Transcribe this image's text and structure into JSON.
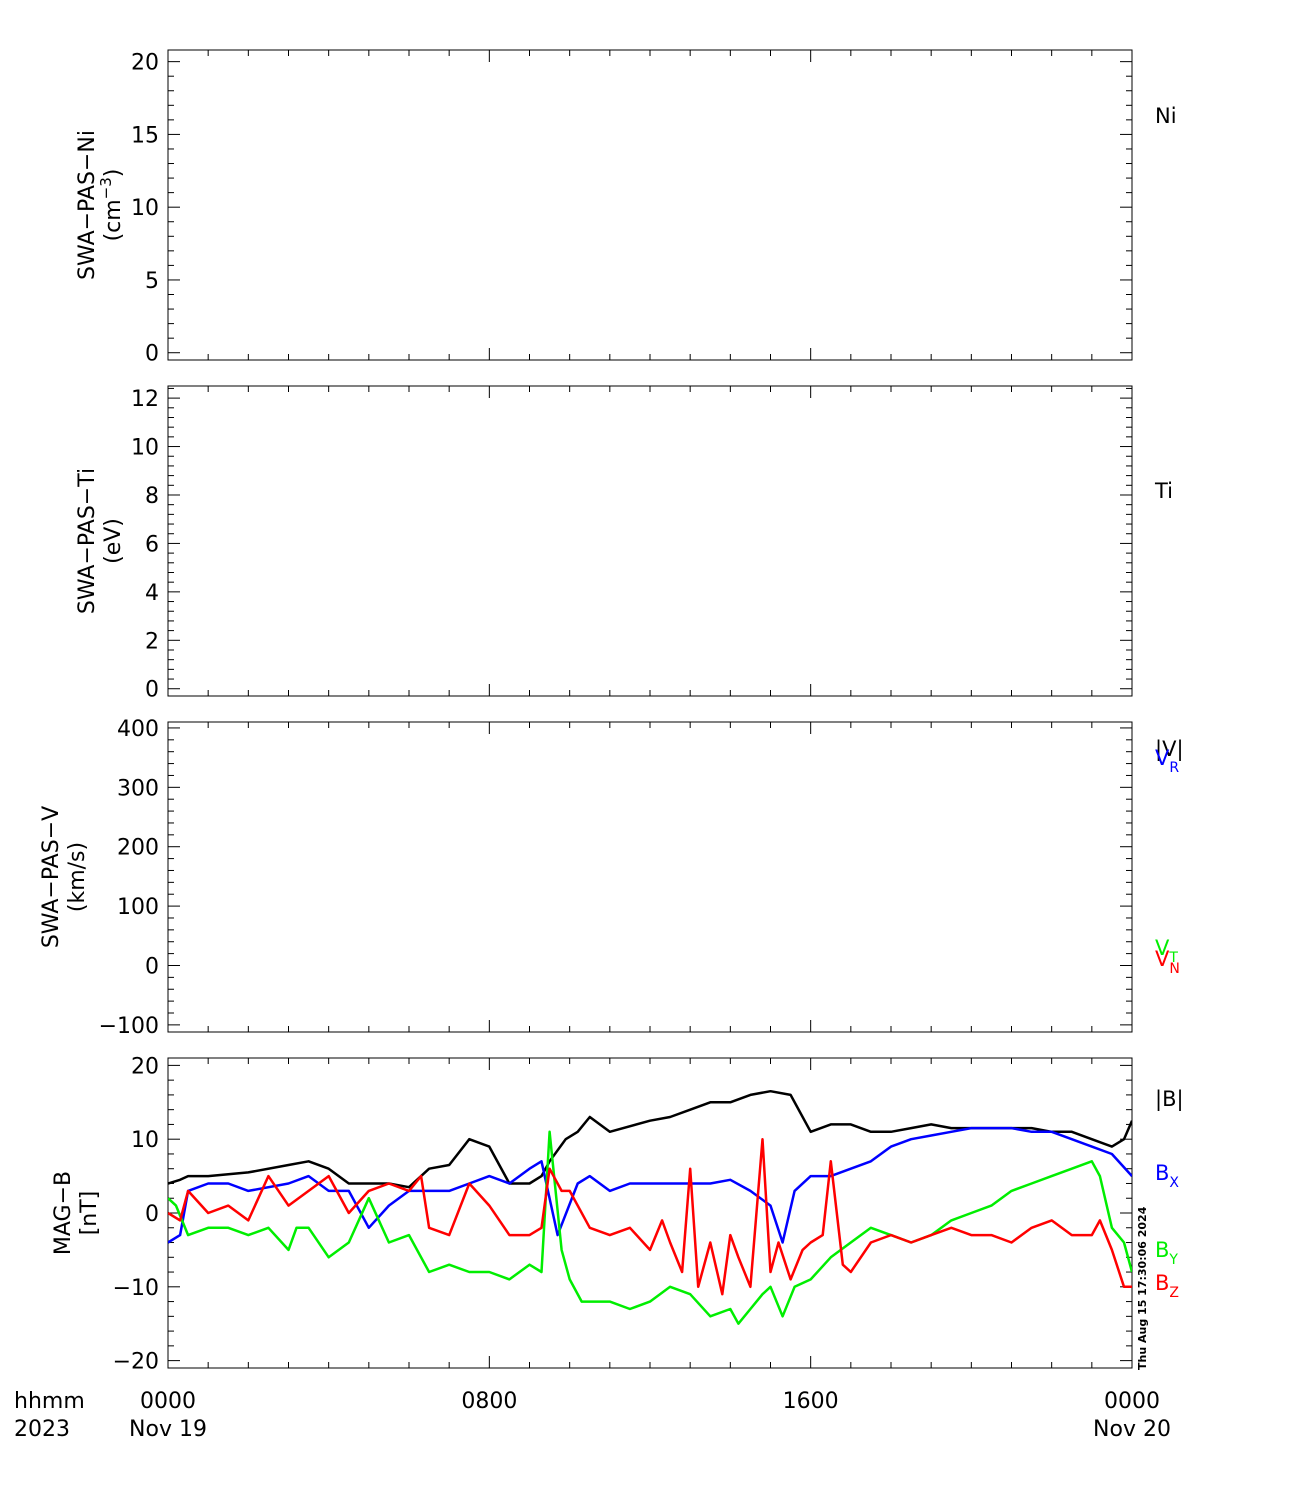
{
  "x_axis": {
    "label_row1": "hhmm",
    "label_row2": "2023",
    "ticks": [
      {
        "hours": 0,
        "label": "0000",
        "date": "Nov 19"
      },
      {
        "hours": 8,
        "label": "0800",
        "date": ""
      },
      {
        "hours": 16,
        "label": "1600",
        "date": ""
      },
      {
        "hours": 24,
        "label": "0000",
        "date": "Nov 20"
      }
    ]
  },
  "timestamp": "Thu Aug 15 17:30:06 2024",
  "colors": {
    "black": "#000000",
    "blue": "#0000ff",
    "green": "#00ee00",
    "red": "#ff0000"
  },
  "chart_data": [
    {
      "type": "line",
      "ylabel": [
        "SWA-PAS-Ni",
        "(cm-3)"
      ],
      "ylim": [
        -0.5,
        20.8
      ],
      "yticks": [
        0,
        5,
        10,
        15,
        20
      ],
      "legend": [
        {
          "text": "Ni",
          "sub": "",
          "color": "#000000"
        }
      ],
      "series": []
    },
    {
      "type": "line",
      "ylabel": [
        "SWA-PAS-Ti",
        "(eV)"
      ],
      "ylim": [
        -0.3,
        12.5
      ],
      "yticks": [
        0,
        2,
        4,
        6,
        8,
        10,
        12
      ],
      "legend": [
        {
          "text": "Ti",
          "sub": "",
          "color": "#000000"
        }
      ],
      "series": []
    },
    {
      "type": "line",
      "ylabel": [
        "SWA-PAS-V",
        "(km/s)"
      ],
      "ylim": [
        -112,
        410
      ],
      "yticks": [
        -100,
        0,
        100,
        200,
        300,
        400
      ],
      "legend": [
        {
          "text": "|V|",
          "sub": "",
          "color": "#000000"
        },
        {
          "text": "V",
          "sub": "R",
          "color": "#0000ff"
        },
        {
          "text": "V",
          "sub": "T",
          "color": "#00ee00"
        },
        {
          "text": "V",
          "sub": "N",
          "color": "#ff0000"
        }
      ],
      "series": []
    },
    {
      "type": "line",
      "ylabel": [
        "MAG-B",
        "[nT]"
      ],
      "ylim": [
        -21,
        21
      ],
      "yticks": [
        -20,
        -10,
        0,
        10,
        20
      ],
      "legend": [
        {
          "text": "|B|",
          "sub": "",
          "color": "#000000"
        },
        {
          "text": "B",
          "sub": "X",
          "color": "#0000ff"
        },
        {
          "text": "B",
          "sub": "Y",
          "color": "#00ee00"
        },
        {
          "text": "B",
          "sub": "Z",
          "color": "#ff0000"
        }
      ],
      "series": [
        {
          "name": "|B|",
          "color": "#000000",
          "x": [
            0,
            0.3,
            0.5,
            1,
            2,
            3,
            3.5,
            4,
            4.5,
            5,
            5.5,
            6,
            6.5,
            7,
            7.5,
            8,
            8.5,
            9,
            9.3,
            9.5,
            9.9,
            10.2,
            10.5,
            11,
            12,
            12.5,
            13,
            13.5,
            14,
            14.5,
            15,
            15.5,
            16,
            16.5,
            17,
            17.5,
            18,
            18.5,
            19,
            19.5,
            20,
            20.5,
            21,
            21.5,
            22,
            22.5,
            23,
            23.5,
            23.8,
            24
          ],
          "y": [
            4,
            4.5,
            5,
            5,
            5.5,
            6.5,
            7,
            6,
            4,
            4,
            4,
            3.5,
            6,
            6.5,
            10,
            9,
            4,
            4,
            5,
            7,
            10,
            11,
            13,
            11,
            12.5,
            13,
            14,
            15,
            15,
            16,
            16.5,
            16,
            11,
            12,
            12,
            11,
            11,
            11.5,
            12,
            11.5,
            11.5,
            11.5,
            11.5,
            11.5,
            11,
            11,
            10,
            9,
            10,
            12.5
          ]
        },
        {
          "name": "B",
          "sub": "X",
          "color": "#0000ff",
          "x": [
            0,
            0.3,
            0.5,
            1,
            1.5,
            2,
            3,
            3.5,
            4,
            4.5,
            5,
            5.5,
            6,
            6.5,
            7,
            7.5,
            8,
            8.5,
            9,
            9.3,
            9.7,
            10.2,
            10.5,
            11,
            11.5,
            12,
            12.5,
            13,
            13.5,
            14,
            14.5,
            15,
            15.3,
            15.6,
            16,
            16.5,
            17,
            17.5,
            18,
            18.5,
            19,
            19.5,
            20,
            20.5,
            21,
            21.5,
            22,
            22.5,
            23,
            23.5,
            24
          ],
          "y": [
            -4,
            -3,
            3,
            4,
            4,
            3,
            4,
            5,
            3,
            3,
            -2,
            1,
            3,
            3,
            3,
            4,
            5,
            4,
            6,
            7,
            -3,
            4,
            5,
            3,
            4,
            4,
            4,
            4,
            4,
            4.5,
            3,
            1,
            -4,
            3,
            5,
            5,
            6,
            7,
            9,
            10,
            10.5,
            11,
            11.5,
            11.5,
            11.5,
            11,
            11,
            10,
            9,
            8,
            5
          ]
        },
        {
          "name": "B",
          "sub": "Y",
          "color": "#00ee00",
          "x": [
            0,
            0.2,
            0.5,
            1,
            1.5,
            2,
            2.5,
            3,
            3.2,
            3.5,
            4,
            4.5,
            5,
            5.5,
            6,
            6.5,
            7,
            7.5,
            8,
            8.5,
            9,
            9.3,
            9.5,
            9.8,
            10,
            10.3,
            10.6,
            11,
            11.5,
            12,
            12.5,
            13,
            13.5,
            14,
            14.2,
            14.5,
            14.8,
            15,
            15.3,
            15.6,
            16,
            16.5,
            17,
            17.5,
            18,
            18.5,
            19,
            19.5,
            20,
            20.5,
            21,
            21.5,
            22,
            22.5,
            23,
            23.2,
            23.5,
            23.8,
            24
          ],
          "y": [
            2,
            1,
            -3,
            -2,
            -2,
            -3,
            -2,
            -5,
            -2,
            -2,
            -6,
            -4,
            2,
            -4,
            -3,
            -8,
            -7,
            -8,
            -8,
            -9,
            -7,
            -8,
            11,
            -5,
            -9,
            -12,
            -12,
            -12,
            -13,
            -12,
            -10,
            -11,
            -14,
            -13,
            -15,
            -13,
            -11,
            -10,
            -14,
            -10,
            -9,
            -6,
            -4,
            -2,
            -3,
            -4,
            -3,
            -1,
            0,
            1,
            3,
            4,
            5,
            6,
            7,
            5,
            -2,
            -4,
            -8
          ]
        },
        {
          "name": "B",
          "sub": "Z",
          "color": "#ff0000",
          "x": [
            0,
            0.3,
            0.5,
            1,
            1.5,
            2,
            2.5,
            3,
            3.5,
            4,
            4.5,
            5,
            5.5,
            6,
            6.3,
            6.5,
            7,
            7.5,
            8,
            8.5,
            9,
            9.3,
            9.5,
            9.8,
            10,
            10.5,
            11,
            11.5,
            12,
            12.3,
            12.5,
            12.8,
            13,
            13.2,
            13.5,
            13.8,
            14,
            14.2,
            14.5,
            14.8,
            15,
            15.2,
            15.5,
            15.8,
            16,
            16.3,
            16.5,
            16.8,
            17,
            17.5,
            18,
            18.5,
            19,
            19.5,
            20,
            20.5,
            21,
            21.5,
            22,
            22.5,
            23,
            23.2,
            23.5,
            23.8,
            24
          ],
          "y": [
            0,
            -1,
            3,
            0,
            1,
            -1,
            5,
            1,
            3,
            5,
            0,
            3,
            4,
            3,
            5,
            -2,
            -3,
            4,
            1,
            -3,
            -3,
            -2,
            6,
            3,
            3,
            -2,
            -3,
            -2,
            -5,
            -1,
            -4,
            -8,
            6,
            -10,
            -4,
            -11,
            -3,
            -6,
            -10,
            10,
            -8,
            -4,
            -9,
            -5,
            -4,
            -3,
            7,
            -7,
            -8,
            -4,
            -3,
            -4,
            -3,
            -2,
            -3,
            -3,
            -4,
            -2,
            -1,
            -3,
            -3,
            -1,
            -5,
            -10,
            -10
          ]
        }
      ]
    }
  ]
}
